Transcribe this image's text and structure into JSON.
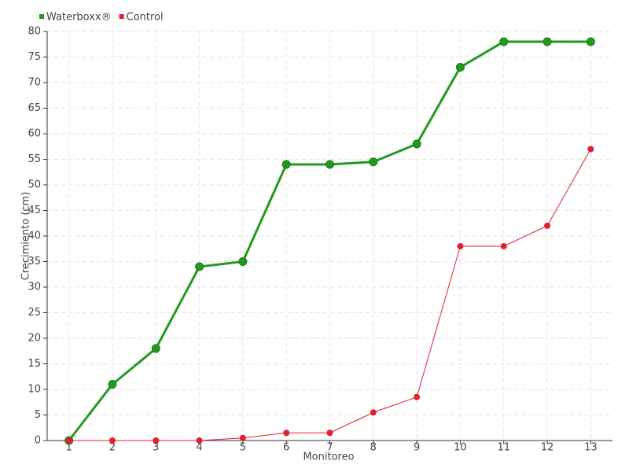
{
  "chart_data": {
    "type": "line",
    "categories": [
      "1",
      "2",
      "3",
      "4",
      "5",
      "6",
      "7",
      "8",
      "9",
      "10",
      "11",
      "12",
      "13"
    ],
    "series": [
      {
        "name": "Waterboxx®",
        "color": "#229a1e",
        "values": [
          0,
          11,
          18,
          34,
          35,
          54,
          54,
          54.5,
          58,
          73,
          78,
          78,
          78
        ]
      },
      {
        "name": "Control",
        "color": "#e3202e",
        "values": [
          0,
          0,
          0,
          0,
          0.5,
          1.5,
          1.5,
          5.5,
          8.5,
          38,
          38,
          42,
          57
        ]
      }
    ],
    "x_label": "Monitoreo",
    "y_label": "Crecimiento (cm)",
    "ylim": [
      0,
      80
    ],
    "yticks": [
      0,
      5,
      10,
      15,
      20,
      25,
      30,
      35,
      40,
      45,
      50,
      55,
      60,
      65,
      70,
      75,
      80
    ],
    "grid": true,
    "legend": "top-left"
  }
}
